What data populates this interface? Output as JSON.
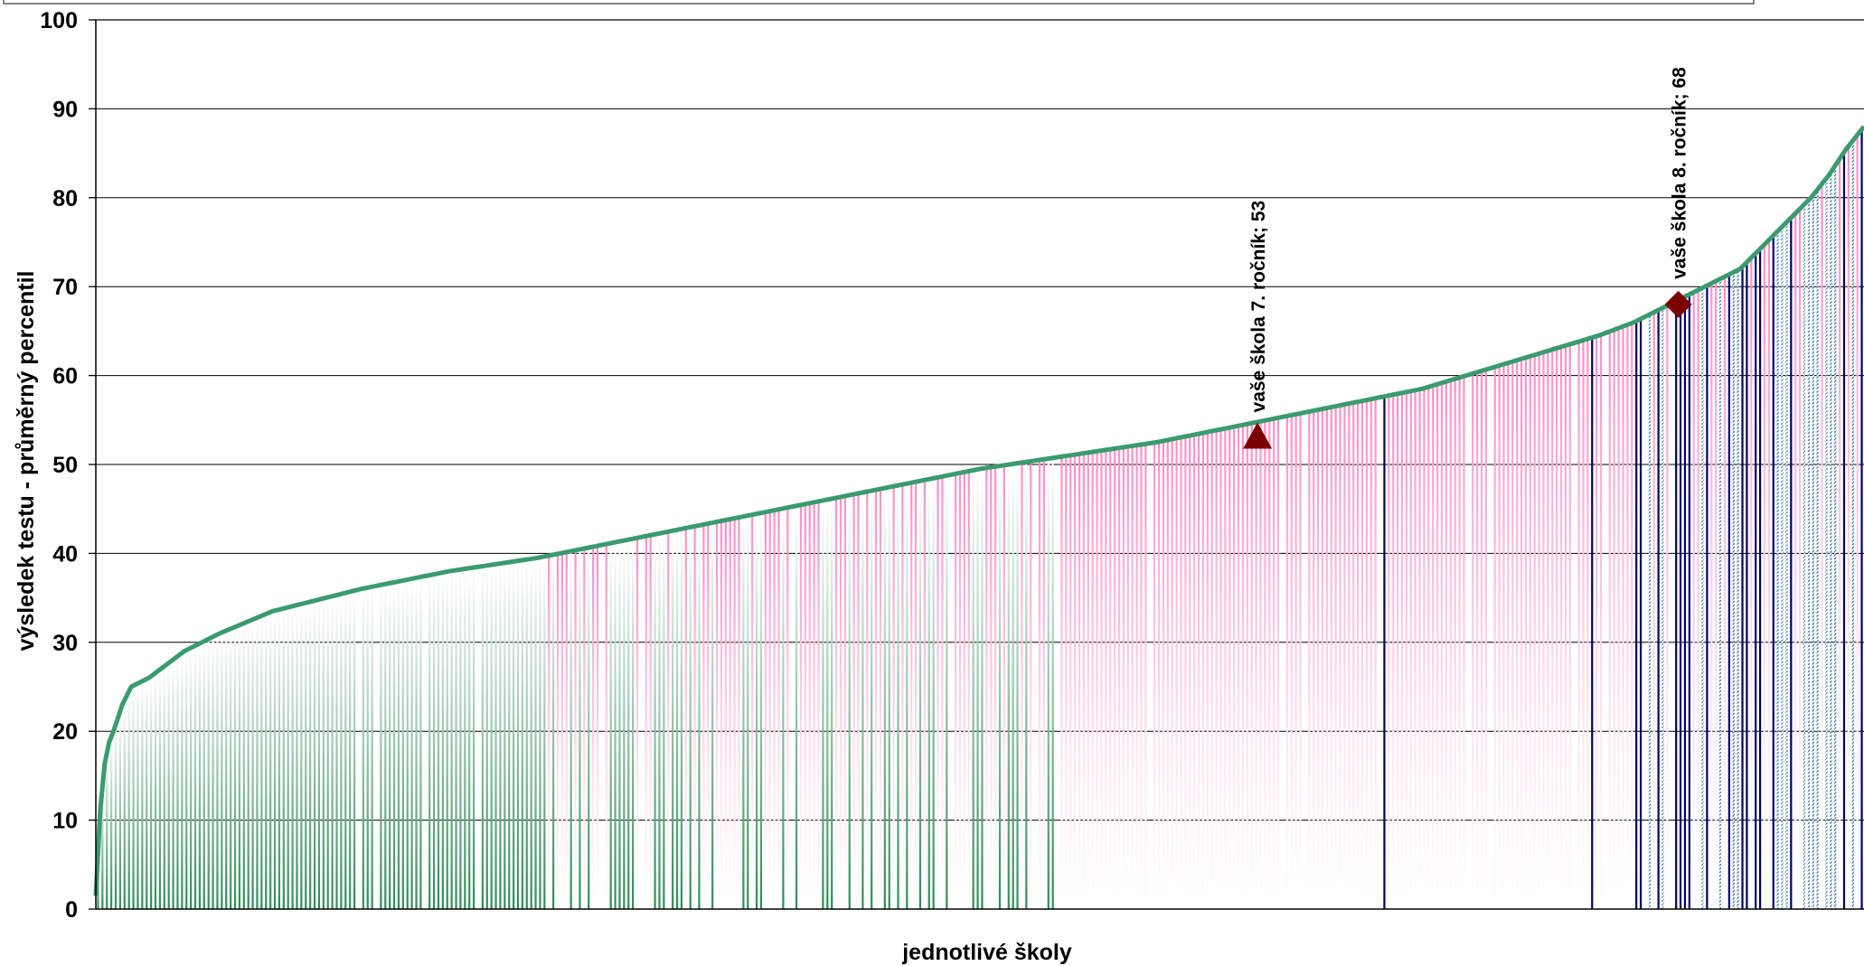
{
  "chart_data": {
    "type": "bar",
    "title": "",
    "xlabel": "jednotlivé školy",
    "ylabel": "výsledek testu - průměrný percentil",
    "ylim": [
      0,
      100
    ],
    "yticks": [
      0,
      10,
      20,
      30,
      40,
      50,
      60,
      70,
      80,
      90,
      100
    ],
    "grid": true,
    "legend": "none",
    "n_schools": 400,
    "curve": {
      "x_fraction": [
        0,
        0.003,
        0.006,
        0.01,
        0.015,
        0.02,
        0.03,
        0.04,
        0.05,
        0.07,
        0.1,
        0.15,
        0.2,
        0.25,
        0.3,
        0.35,
        0.4,
        0.45,
        0.5,
        0.55,
        0.6,
        0.65,
        0.7,
        0.75,
        0.8,
        0.85,
        0.87,
        0.9,
        0.93,
        0.95,
        0.97,
        0.98,
        0.99,
        1.0
      ],
      "value": [
        1.5,
        13,
        18,
        20,
        23,
        25,
        26,
        27.5,
        29,
        31,
        33.5,
        36,
        38,
        39.5,
        41.5,
        43.5,
        45.5,
        47.5,
        49.5,
        51,
        52.5,
        54.5,
        56.5,
        58.5,
        61.5,
        64.5,
        66,
        69,
        72,
        76,
        80,
        82.5,
        85.5,
        88
      ]
    },
    "highlights": [
      {
        "label": "vaše škola 7. ročník; 53",
        "value": 53,
        "x_fraction": 0.657,
        "marker": "triangle"
      },
      {
        "label": "vaše škola 8. ročník; 68",
        "value": 68,
        "x_fraction": 0.895,
        "marker": "diamond"
      }
    ],
    "colors": {
      "curve": "#3a9b6e",
      "bar_low": "#2e8b57",
      "bar_high": "#ff8ec6",
      "bar_dark": "#00006b",
      "bar_hatch": "#4a7fb8",
      "marker": "#7b0000",
      "grid": "#000000"
    }
  }
}
